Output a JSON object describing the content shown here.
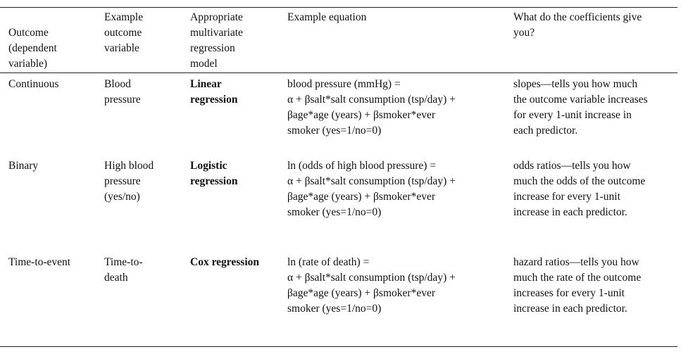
{
  "table": {
    "headers": {
      "outcome": "Outcome\n(dependent\nvariable)",
      "example": "Example\noutcome\nvariable",
      "model": "Appropriate\nmultivariate\nregression\nmodel",
      "equation": "Example equation",
      "coefficients": "What do the coefficients give\nyou?"
    },
    "rows": [
      {
        "outcome": "Continuous",
        "example": "Blood\npressure",
        "model": "Linear\nregression",
        "equation": "blood pressure (mmHg) =\nα  +  βsalt*salt consumption (tsp/day) +\nβage*age (years) + βsmoker*ever\nsmoker (yes=1/no=0)",
        "coefficients": "slopes—tells you how much\nthe outcome variable increases\nfor every 1-unit increase in\neach predictor."
      },
      {
        "outcome": "Binary",
        "example": "High blood\npressure\n(yes/no)",
        "model": "Logistic\nregression",
        "equation": "ln (odds of high blood pressure) =\nα  +  βsalt*salt consumption (tsp/day) +\nβage*age (years) + βsmoker*ever\nsmoker (yes=1/no=0)",
        "coefficients": "odds ratios—tells you how\nmuch the odds of the outcome\nincrease for every 1-unit\nincrease in each predictor."
      },
      {
        "outcome": "Time-to-event",
        "example": "Time-to-\ndeath",
        "model": "Cox regression",
        "equation": "ln (rate of death) =\nα  +  βsalt*salt consumption (tsp/day) +\nβage*age (years) + βsmoker*ever\nsmoker (yes=1/no=0)",
        "coefficients": "hazard ratios—tells you how\nmuch the rate of the outcome\nincreases for every 1-unit\nincrease in each predictor."
      }
    ]
  }
}
